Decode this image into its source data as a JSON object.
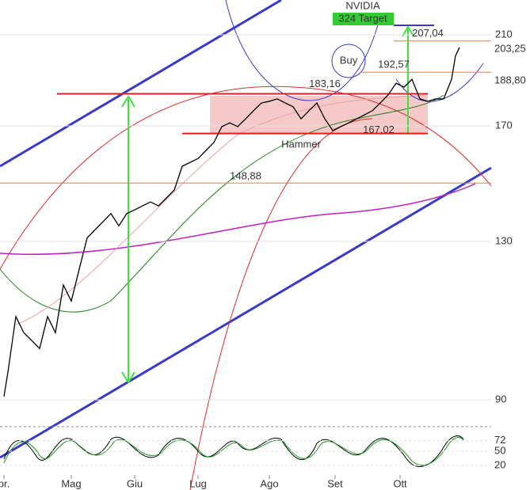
{
  "chart_data": {
    "type": "line",
    "title": "NVIDIA",
    "annotations": {
      "target": "324 Target",
      "buy": "Buy",
      "hammer": "Hammer"
    },
    "x": [
      5,
      10,
      20,
      30,
      40,
      50,
      60,
      70,
      80,
      90,
      100,
      110,
      120,
      130,
      140,
      150,
      160,
      170,
      180,
      190,
      200,
      210,
      220,
      230,
      240,
      250,
      260,
      270,
      280,
      290,
      300,
      310,
      320,
      330,
      340,
      350,
      360,
      370,
      380,
      390,
      400,
      410,
      420,
      430,
      440,
      450,
      460,
      470,
      480,
      490,
      500,
      510,
      520,
      530,
      540,
      550,
      560,
      570,
      575,
      580
    ],
    "series": [
      {
        "name": "NVIDIA",
        "color": "#000000",
        "values": [
          90.7,
          96.0,
          109.2,
          105.2,
          103.3,
          101.4,
          109.2,
          105.2,
          117.5,
          113.2,
          121.9,
          131.1,
          133.6,
          136.1,
          138.7,
          134.8,
          138.7,
          139.9,
          141.2,
          142.5,
          141.2,
          143.8,
          146.5,
          154.8,
          156.2,
          157.6,
          160.6,
          163.6,
          169.7,
          171.2,
          169.7,
          172.8,
          176.1,
          179.3,
          180.0,
          181.0,
          179.3,
          177.7,
          172.8,
          176.1,
          179.3,
          172.8,
          168.2,
          169.7,
          171.2,
          172.8,
          174.4,
          176.1,
          179.3,
          182.7,
          187.7,
          186.0,
          189.4,
          181.0,
          180.0,
          181.0,
          181.0,
          189.4,
          200.1,
          203.9
        ]
      }
    ],
    "xlim": [
      0,
      620
    ],
    "ylim": [
      85.2,
      227.7
    ],
    "log_scale": true,
    "xticks": [
      {
        "value": 5,
        "label": "pr."
      },
      {
        "value": 90,
        "label": "Mag"
      },
      {
        "value": 170,
        "label": "Giu"
      },
      {
        "value": 250,
        "label": "Lug"
      },
      {
        "value": 340,
        "label": "Ago"
      },
      {
        "value": 423,
        "label": "Set"
      },
      {
        "value": 505,
        "label": "Ott"
      }
    ],
    "yticks": [
      90,
      130,
      170,
      210
    ],
    "levels": [
      {
        "value": 207.04,
        "label": "207,04"
      },
      {
        "value": 192.57,
        "label": "192,57"
      },
      {
        "value": 183.16,
        "label": "183,16"
      },
      {
        "value": 167.02,
        "label": "167,02"
      },
      {
        "value": 148.88,
        "label": "148,88"
      }
    ],
    "price_tags": [
      {
        "value": 203.25,
        "label": "203,25",
        "color": "#c00000"
      },
      {
        "value": 188.8,
        "label": "188,80",
        "color": "#000000"
      }
    ],
    "oscillator": {
      "ylim": [
        0,
        100
      ],
      "yticks": [
        72,
        50,
        20
      ]
    }
  }
}
